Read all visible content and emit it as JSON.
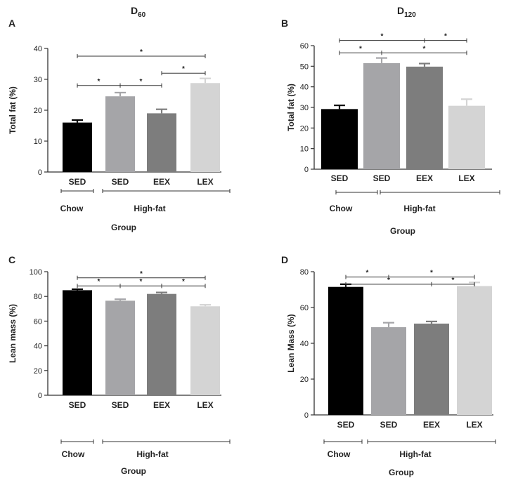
{
  "chart_data": [
    {
      "type": "bar",
      "panel": "A",
      "title": "D",
      "title_sub": "60",
      "categories": [
        "SED",
        "SED",
        "EEX",
        "LEX"
      ],
      "values": [
        16,
        24.5,
        19,
        28.8
      ],
      "errors": [
        0.8,
        1.2,
        1.3,
        1.5
      ],
      "colors": [
        "#000000",
        "#a5a5a8",
        "#7d7d7d",
        "#d4d4d4"
      ],
      "ylabel": "Total fat (%)",
      "xlabel": "Group",
      "ylim": [
        0,
        40
      ],
      "yticks": [
        0,
        10,
        20,
        30,
        40
      ],
      "groups": [
        {
          "label": "Chow",
          "from": 0,
          "to": 0
        },
        {
          "label": "High-fat",
          "from": 1,
          "to": 3
        }
      ],
      "significance": [
        {
          "from": 0,
          "to": 1,
          "label": "*",
          "level": 28
        },
        {
          "from": 1,
          "to": 2,
          "label": "*",
          "level": 28
        },
        {
          "from": 2,
          "to": 3,
          "label": "*",
          "level": 32
        },
        {
          "from": 0,
          "to": 3,
          "label": "*",
          "level": 37.5
        }
      ]
    },
    {
      "type": "bar",
      "panel": "B",
      "title": "D",
      "title_sub": "120",
      "categories": [
        "SED",
        "SED",
        "EEX",
        "LEX"
      ],
      "values": [
        29.2,
        51.5,
        49.8,
        30.8
      ],
      "errors": [
        1.8,
        2.5,
        1.5,
        3.2
      ],
      "colors": [
        "#000000",
        "#a5a5a8",
        "#7d7d7d",
        "#d4d4d4"
      ],
      "ylabel": "Total fat (%)",
      "xlabel": "Group",
      "ylim": [
        0,
        60
      ],
      "yticks": [
        0,
        10,
        20,
        30,
        40,
        50,
        60
      ],
      "groups": [
        {
          "label": "Chow",
          "from": 0,
          "to": 0
        },
        {
          "label": "High-fat",
          "from": 1,
          "to": 3
        }
      ],
      "significance": [
        {
          "from": 0,
          "to": 2,
          "label": "*",
          "level": 62.5
        },
        {
          "from": 2,
          "to": 3,
          "label": "*",
          "level": 62.5
        },
        {
          "from": 0,
          "to": 1,
          "label": "*",
          "level": 56.5
        },
        {
          "from": 1,
          "to": 3,
          "label": "*",
          "level": 56.5
        }
      ]
    },
    {
      "type": "bar",
      "panel": "C",
      "title": "",
      "title_sub": "",
      "categories": [
        "SED",
        "SED",
        "EEX",
        "LEX"
      ],
      "values": [
        85,
        76.5,
        82,
        72
      ],
      "errors": [
        0.8,
        1.2,
        1.2,
        1.2
      ],
      "colors": [
        "#000000",
        "#a5a5a8",
        "#7d7d7d",
        "#d4d4d4"
      ],
      "ylabel": "Lean mass (%)",
      "xlabel": "Group",
      "ylim": [
        0,
        100
      ],
      "yticks": [
        0,
        20,
        40,
        60,
        80,
        100
      ],
      "groups": [
        {
          "label": "Chow",
          "from": 0,
          "to": 0
        },
        {
          "label": "High-fat",
          "from": 1,
          "to": 3
        }
      ],
      "significance": [
        {
          "from": 0,
          "to": 1,
          "label": "*",
          "level": 88.5
        },
        {
          "from": 1,
          "to": 2,
          "label": "*",
          "level": 88.5
        },
        {
          "from": 2,
          "to": 3,
          "label": "*",
          "level": 88.5
        },
        {
          "from": 0,
          "to": 3,
          "label": "*",
          "level": 95
        }
      ]
    },
    {
      "type": "bar",
      "panel": "D",
      "title": "",
      "title_sub": "",
      "categories": [
        "SED",
        "SED",
        "EEX",
        "LEX"
      ],
      "values": [
        71.5,
        49,
        51,
        72
      ],
      "errors": [
        1.5,
        2.5,
        1.2,
        2.0
      ],
      "colors": [
        "#000000",
        "#a5a5a8",
        "#7d7d7d",
        "#d4d4d4"
      ],
      "ylabel": "Lean Mass (%)",
      "xlabel": "Group",
      "ylim": [
        0,
        80
      ],
      "yticks": [
        0,
        20,
        40,
        60,
        80
      ],
      "groups": [
        {
          "label": "Chow",
          "from": 0,
          "to": 0
        },
        {
          "label": "High-fat",
          "from": 1,
          "to": 3
        }
      ],
      "significance": [
        {
          "from": 0,
          "to": 1,
          "label": "*",
          "level": 77
        },
        {
          "from": 1,
          "to": 3,
          "label": "*",
          "level": 77
        },
        {
          "from": 0,
          "to": 2,
          "label": "*",
          "level": 73
        },
        {
          "from": 2,
          "to": 3,
          "label": "*",
          "level": 73
        }
      ]
    }
  ]
}
